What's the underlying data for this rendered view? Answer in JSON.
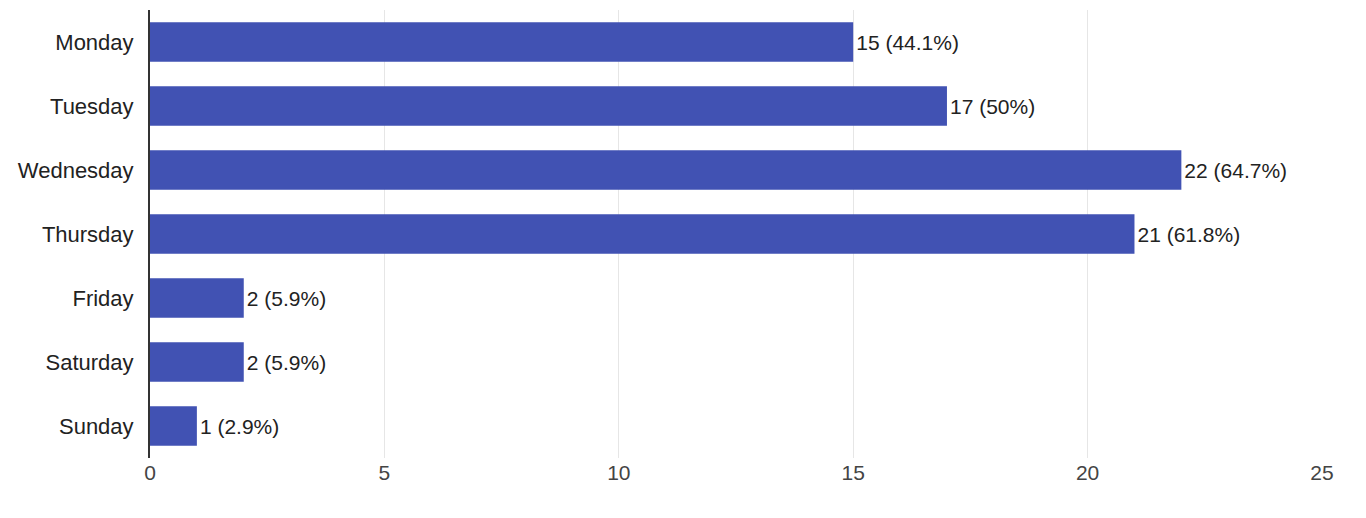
{
  "chart_data": {
    "type": "bar",
    "orientation": "horizontal",
    "categories": [
      "Monday",
      "Tuesday",
      "Wednesday",
      "Thursday",
      "Friday",
      "Saturday",
      "Sunday"
    ],
    "values": [
      15,
      17,
      22,
      21,
      2,
      2,
      1
    ],
    "value_labels": [
      "15 (44.1%)",
      "17 (50%)",
      "22 (64.7%)",
      "21 (61.8%)",
      "2 (5.9%)",
      "2 (5.9%)",
      "1 (2.9%)"
    ],
    "data_labels": true,
    "color": "#4152b3",
    "xlim": [
      0,
      25
    ],
    "xticks": [
      0,
      5,
      10,
      15,
      20,
      25
    ],
    "grid": true
  }
}
